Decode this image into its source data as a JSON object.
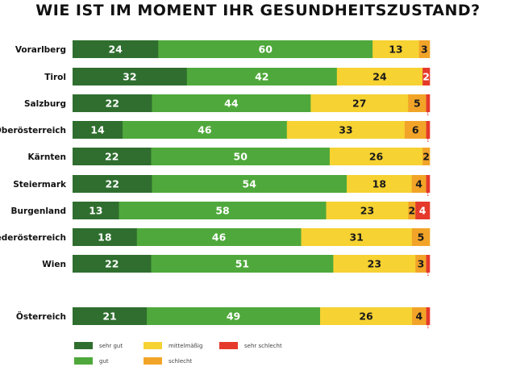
{
  "chart_data": {
    "type": "bar",
    "orientation": "horizontal",
    "stacked": true,
    "title": "WIE IST IM MOMENT IHR GESUNDHEITSZUSTAND?",
    "unit": "%",
    "categories": [
      "Vorarlberg",
      "Tirol",
      "Salzburg",
      "Oberösterreich",
      "Kärnten",
      "Steiermark",
      "Burgenland",
      "Niederösterreich",
      "Wien",
      "Österreich"
    ],
    "series": [
      {
        "name": "sehr gut",
        "color": "#2f6e2f",
        "values": [
          24,
          32,
          22,
          14,
          22,
          22,
          13,
          18,
          22,
          21
        ]
      },
      {
        "name": "gut",
        "color": "#4fa83b",
        "values": [
          60,
          42,
          44,
          46,
          50,
          54,
          58,
          46,
          51,
          49
        ]
      },
      {
        "name": "mittelmäßig",
        "color": "#f6d232",
        "values": [
          13,
          24,
          27,
          33,
          26,
          18,
          23,
          31,
          23,
          26
        ]
      },
      {
        "name": "schlecht",
        "color": "#f2a428",
        "values": [
          3,
          0,
          5,
          6,
          2,
          4,
          2,
          5,
          3,
          4
        ]
      },
      {
        "name": "sehr schlecht",
        "color": "#e5392b",
        "values": [
          0,
          2,
          1,
          1,
          0,
          1,
          4,
          0,
          1,
          1
        ]
      }
    ],
    "legend_position": "bottom",
    "grid": false
  }
}
